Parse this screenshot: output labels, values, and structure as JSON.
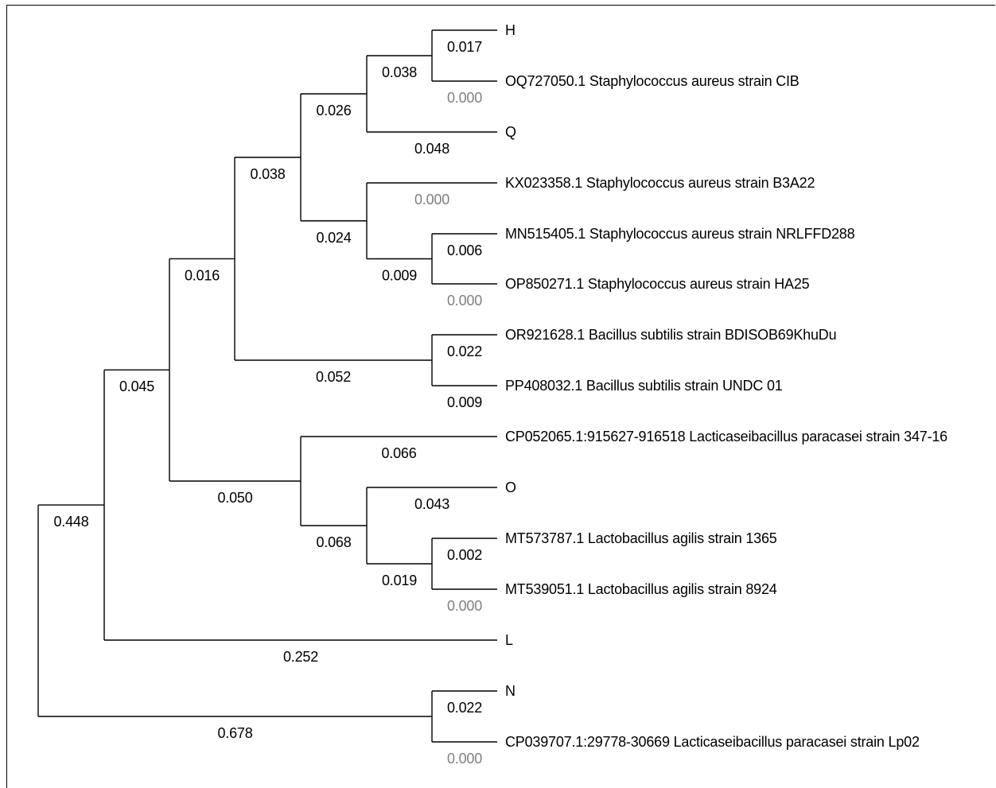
{
  "tree": {
    "leaves": [
      {
        "id": "H",
        "label": "H"
      },
      {
        "id": "OQ727050",
        "label": "OQ727050.1 Staphylococcus aureus strain CIB"
      },
      {
        "id": "Q",
        "label": "Q"
      },
      {
        "id": "KX023358",
        "label": "KX023358.1 Staphylococcus aureus strain B3A22"
      },
      {
        "id": "MN515405",
        "label": "MN515405.1 Staphylococcus aureus strain NRLFFD288"
      },
      {
        "id": "OP850271",
        "label": "OP850271.1 Staphylococcus aureus strain HA25"
      },
      {
        "id": "OR921628",
        "label": "OR921628.1 Bacillus subtilis strain BDISOB69KhuDu"
      },
      {
        "id": "PP408032",
        "label": "PP408032.1 Bacillus subtilis strain UNDC 01"
      },
      {
        "id": "CP052065",
        "label": "CP052065.1:915627-916518 Lacticaseibacillus paracasei strain 347-16"
      },
      {
        "id": "O",
        "label": "O"
      },
      {
        "id": "MT573787",
        "label": "MT573787.1 Lactobacillus agilis strain 1365"
      },
      {
        "id": "MT539051",
        "label": "MT539051.1 Lactobacillus agilis strain 8924"
      },
      {
        "id": "L",
        "label": "L"
      },
      {
        "id": "N",
        "label": "N"
      },
      {
        "id": "CP039707",
        "label": "CP039707.1:29778-30669 Lacticaseibacillus paracasei strain Lp02"
      }
    ],
    "branch_lengths": {
      "H": "0.017",
      "OQ727050": "0.000",
      "clade_H_OQ": "0.038",
      "Q": "0.048",
      "clade_H_OQ_Q": "0.026",
      "KX023358": "0.000",
      "MN515405": "0.006",
      "OP850271": "0.000",
      "clade_MN_OP": "0.009",
      "clade_KX_MN_OP": "0.024",
      "clade_staph": "0.038",
      "OR921628": "0.022",
      "PP408032": "0.009",
      "clade_bacillus": "0.052",
      "clade_staph_bacillus": "0.016",
      "CP052065": "0.066",
      "O": "0.043",
      "MT573787": "0.002",
      "MT539051": "0.000",
      "clade_agilis": "0.019",
      "clade_O_agilis": "0.068",
      "clade_lacto": "0.050",
      "clade_main": "0.045",
      "L": "0.252",
      "clade_main_L": "0.448",
      "N": "0.022",
      "CP039707": "0.000",
      "clade_N_CP": "0.678"
    },
    "zero_color": "#808080",
    "line_color": "#000000"
  }
}
